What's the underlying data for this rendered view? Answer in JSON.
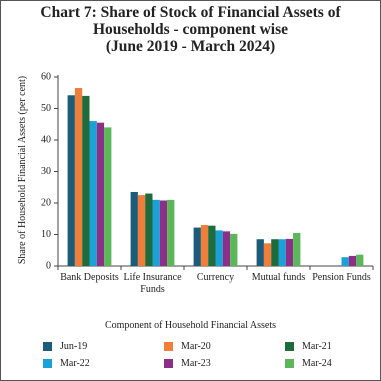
{
  "chart_data": {
    "type": "bar",
    "title": "Chart 7: Share of Stock of Financial Assets of Households - component wise",
    "subtitle": "(June 2019 - March 2024)",
    "ylabel": "Share of Household Financial Assets (per cent)",
    "xlabel": "Component of Household Financial Assets",
    "categories": [
      "Bank Deposits",
      "Life Insurance Funds",
      "Currency",
      "Mutual funds",
      "Pension Funds"
    ],
    "series": [
      {
        "name": "Jun-19",
        "color": "#1d5c78",
        "values": [
          54.2,
          23.5,
          12.2,
          8.5,
          null
        ]
      },
      {
        "name": "Mar-20",
        "color": "#f07d3a",
        "values": [
          56.5,
          22.5,
          13.0,
          7.2,
          null
        ]
      },
      {
        "name": "Mar-21",
        "color": "#1f6b3b",
        "values": [
          54.0,
          23.0,
          12.8,
          8.5,
          null
        ]
      },
      {
        "name": "Mar-22",
        "color": "#1ba1d6",
        "values": [
          46.0,
          21.0,
          11.3,
          8.5,
          2.8
        ]
      },
      {
        "name": "Mar-23",
        "color": "#8c2f88",
        "values": [
          45.5,
          20.8,
          11.0,
          8.6,
          3.2
        ]
      },
      {
        "name": "Mar-24",
        "color": "#5bb75a",
        "values": [
          44.0,
          21.0,
          10.2,
          10.5,
          3.6
        ]
      }
    ],
    "ylim": [
      0,
      60
    ],
    "yticks": [
      0,
      10,
      20,
      30,
      40,
      50,
      60
    ],
    "grid": false
  }
}
